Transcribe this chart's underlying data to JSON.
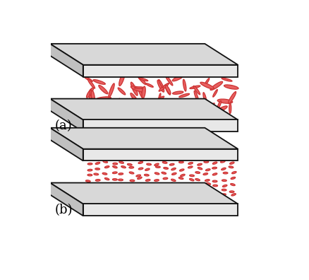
{
  "background_color": "#ffffff",
  "plate_face_color": "#d8d8d8",
  "plate_front_color": "#e8e8e8",
  "plate_side_color": "#c0c0c0",
  "plate_edge_color": "#111111",
  "ellipse_face_color": "#e86060",
  "ellipse_edge_color": "#cc3333",
  "label_a": "(a)",
  "label_b": "(b)",
  "label_fontsize": 13,
  "fig_width": 4.38,
  "fig_height": 3.96,
  "dpi": 100
}
